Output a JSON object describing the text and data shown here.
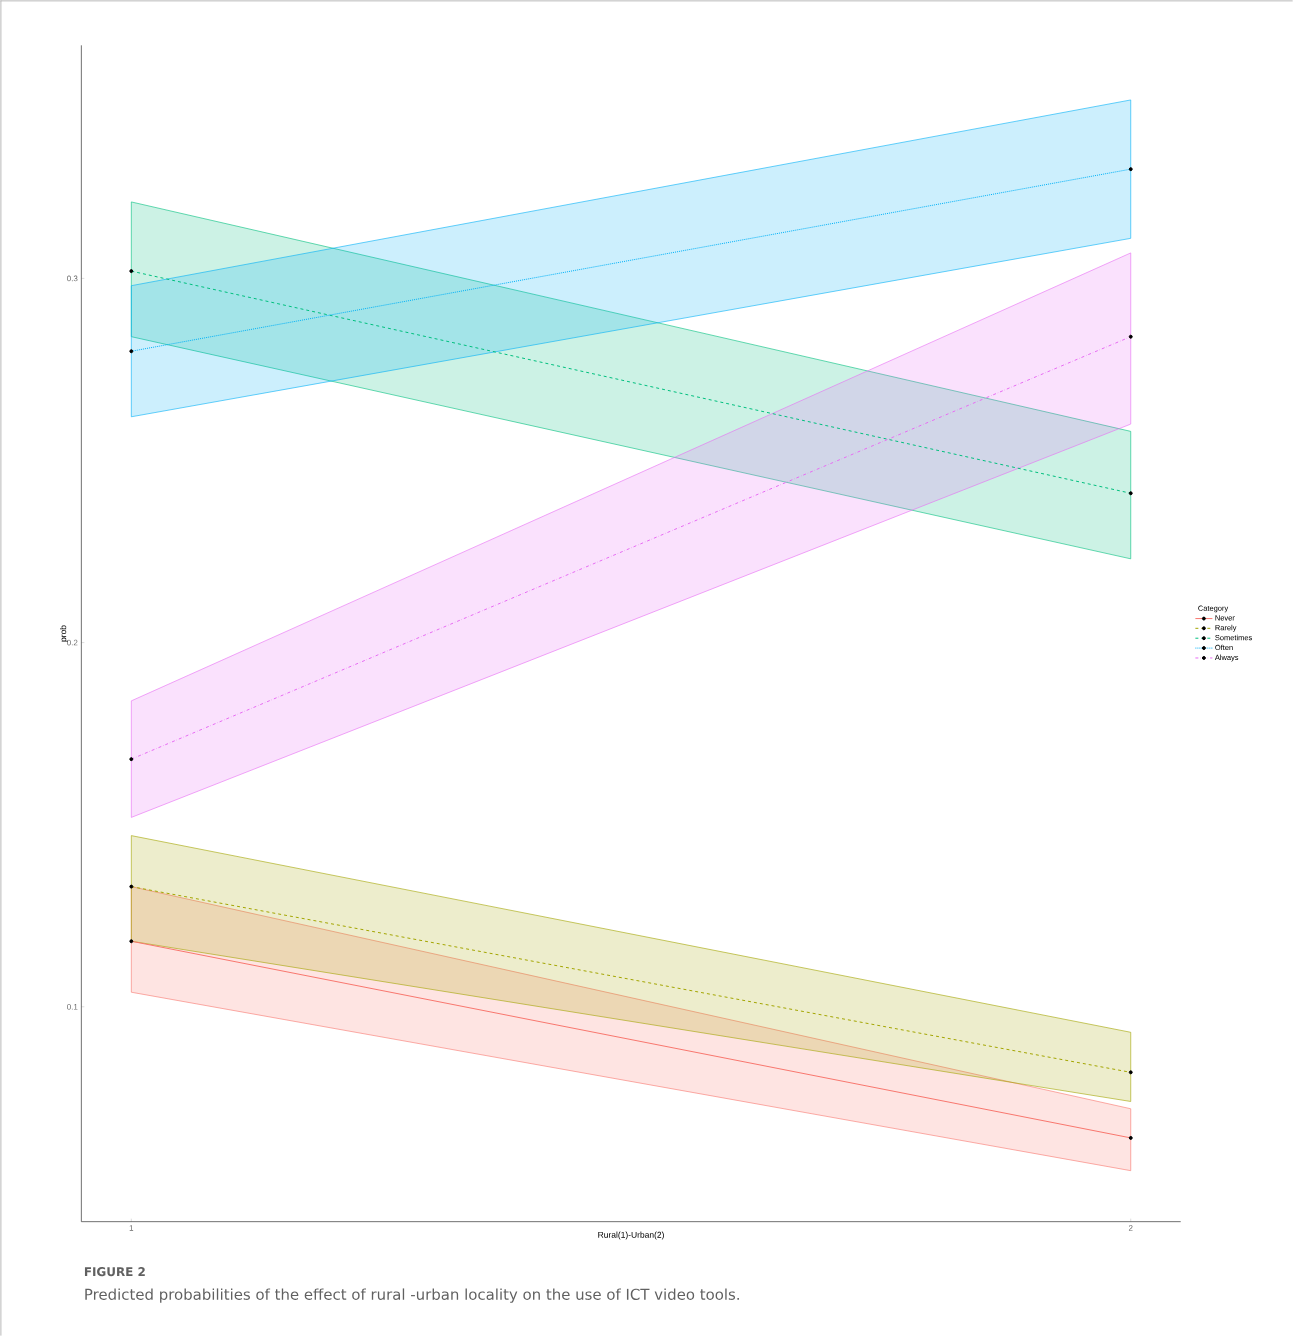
{
  "chart_data": {
    "type": "line",
    "xlabel": "Rural(1)-Urban(2)",
    "ylabel": "prob",
    "legend_title": "Category",
    "annotations": [
      "FIGURE 2",
      "Predicted probabilities of the effect of rural -urban locality on the use of ICT video tools."
    ],
    "x": [
      1,
      2
    ],
    "xlim": [
      0.95,
      2.05
    ],
    "xticks": [
      1,
      2
    ],
    "ylim": [
      0.041,
      0.364
    ],
    "yticks": [
      0.1,
      0.2,
      0.3
    ],
    "grid": false,
    "legend": "right",
    "marker": "circle",
    "series": [
      {
        "name": "Never",
        "color": "#f8766d",
        "values": [
          0.118,
          0.064
        ],
        "lower": [
          0.104,
          0.055
        ],
        "upper": [
          0.133,
          0.072
        ],
        "line_style": "solid"
      },
      {
        "name": "Rarely",
        "color": "#a3a500",
        "values": [
          0.133,
          0.082
        ],
        "lower": [
          0.118,
          0.074
        ],
        "upper": [
          0.147,
          0.093
        ],
        "line_style": "dashed"
      },
      {
        "name": "Sometimes",
        "color": "#00bf7d",
        "values": [
          0.302,
          0.241
        ],
        "lower": [
          0.284,
          0.223
        ],
        "upper": [
          0.321,
          0.258
        ],
        "line_style": "dashed"
      },
      {
        "name": "Often",
        "color": "#00b0f6",
        "values": [
          0.28,
          0.33
        ],
        "lower": [
          0.262,
          0.311
        ],
        "upper": [
          0.298,
          0.349
        ],
        "line_style": "dotted"
      },
      {
        "name": "Always",
        "color": "#e76bf3",
        "values": [
          0.168,
          0.284
        ],
        "lower": [
          0.152,
          0.26
        ],
        "upper": [
          0.184,
          0.307
        ],
        "line_style": "dashdot"
      }
    ]
  }
}
